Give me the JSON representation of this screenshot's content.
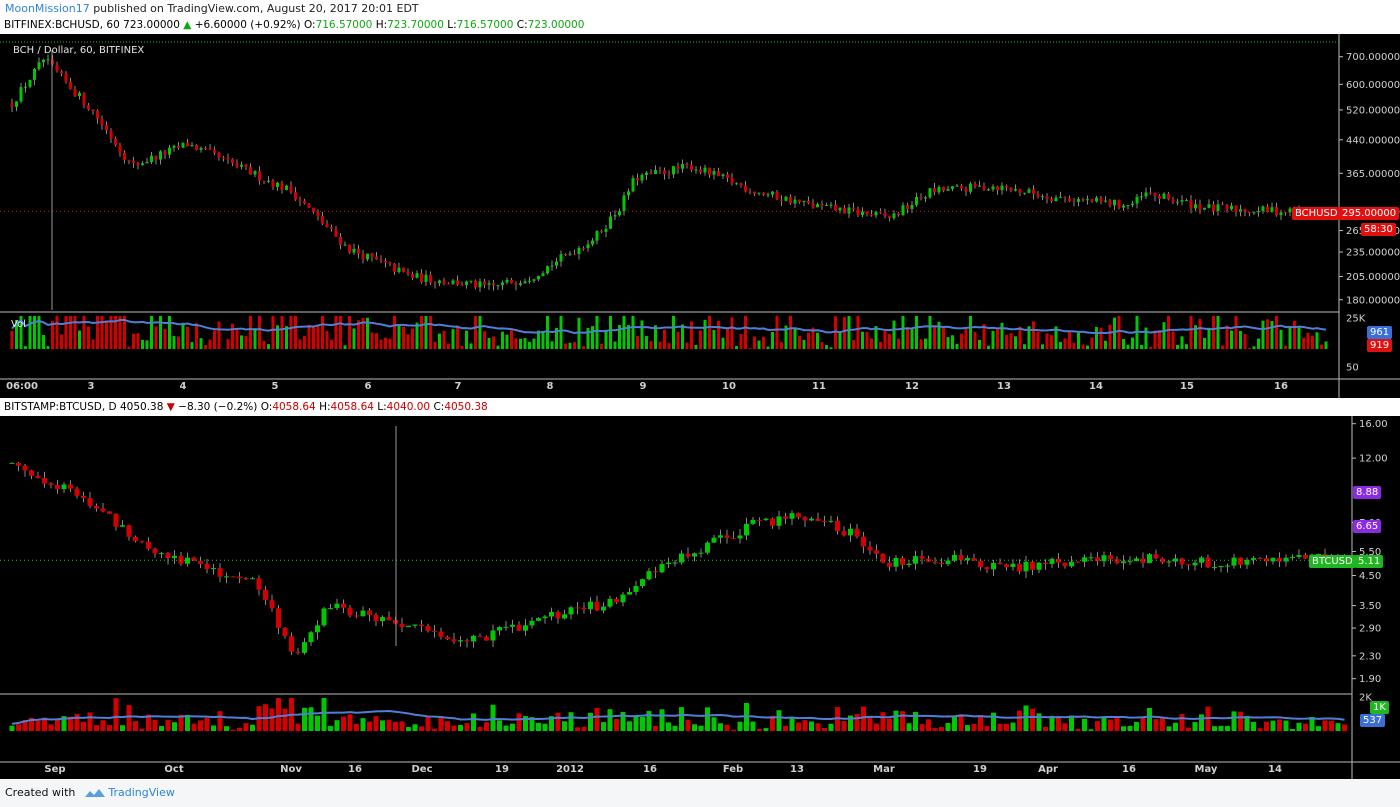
{
  "publish": {
    "user": "MoonMission17",
    "text": "published on TradingView.com, August 20, 2017 20:01 EDT"
  },
  "colors": {
    "up": "#00c800",
    "down": "#d40000",
    "volume_ma": "#4f7fd7",
    "background": "#000000",
    "accent": "#2e84d6",
    "tag_purple": "#8a2be2",
    "tag_blue": "#3a6fd8",
    "tag_red": "#e01010",
    "tag_green": "#22b522"
  },
  "charts": [
    {
      "header": {
        "symbol": "BITFINEX:BCHUSD, 60",
        "last": "723.00000",
        "change_arrow": "▲",
        "change": "+6.60000 (+0.92%)",
        "o_label": "O:",
        "o": "716.57000",
        "h_label": "H:",
        "h": "723.70000",
        "l_label": "L:",
        "l": "716.57000",
        "c_label": "C:",
        "c": "723.00000"
      },
      "watermark": "BCH / Dollar, 60, BITFINEX",
      "y_ticks": [
        "700.00000",
        "600.00000",
        "520.00000",
        "440.00000",
        "365.00000",
        "295.00000",
        "265.00000",
        "235.00000",
        "205.00000",
        "180.00000"
      ],
      "x_ticks": [
        "06:00",
        "3",
        "4",
        "5",
        "6",
        "7",
        "8",
        "9",
        "10",
        "11",
        "12",
        "13",
        "14",
        "15",
        "16"
      ],
      "vol_label": "Vol",
      "vol_ticks": [
        "25K",
        "50"
      ],
      "tags": {
        "symbol_tag": "BCHUSD",
        "price_tag": "295.00000",
        "time_tag": "58:30",
        "vol_ma_tag": "961",
        "vol_tag": "919"
      }
    },
    {
      "header": {
        "symbol": "BITSTAMP:BTCUSD, D",
        "last": "4050.38",
        "change_arrow": "▼",
        "change": "−8.30 (−0.2%)",
        "o_label": "O:",
        "o": "4058.64",
        "h_label": "H:",
        "h": "4058.64",
        "l_label": "L:",
        "l": "4040.00",
        "c_label": "C:",
        "c": "4050.38"
      },
      "y_ticks": [
        "16.00",
        "12.00",
        "7.00",
        "5.50",
        "4.50",
        "3.50",
        "2.90",
        "2.30",
        "1.90"
      ],
      "x_ticks": [
        "Sep",
        "Oct",
        "Nov",
        "16",
        "Dec",
        "19",
        "2012",
        "16",
        "Feb",
        "13",
        "Mar",
        "19",
        "Apr",
        "16",
        "May",
        "14"
      ],
      "vol_ticks": [
        "2K"
      ],
      "tags": {
        "purple_1": "8.88",
        "purple_2": "6.65",
        "symbol_tag": "BTCUSD",
        "price_tag": "5.11",
        "vol_tag": "1K",
        "vol_ma_tag": "537"
      }
    }
  ],
  "chart_data": [
    {
      "type": "candlestick",
      "title": "BCH / Dollar, 60, BITFINEX",
      "x_ticks": [
        "06:00",
        "3",
        "4",
        "5",
        "6",
        "7",
        "8",
        "9",
        "10",
        "11",
        "12",
        "13",
        "14",
        "15",
        "16"
      ],
      "y_scale": "log",
      "ylim": [
        170,
        760
      ],
      "trend": [
        [
          0,
          540
        ],
        [
          0.4,
          690
        ],
        [
          1,
          520
        ],
        [
          1.5,
          380
        ],
        [
          2.2,
          430
        ],
        [
          3.5,
          330
        ],
        [
          4.2,
          240
        ],
        [
          5,
          205
        ],
        [
          6,
          193
        ],
        [
          6.5,
          205
        ],
        [
          7.3,
          255
        ],
        [
          7.6,
          300
        ],
        [
          7.8,
          355
        ],
        [
          8.5,
          380
        ],
        [
          9.3,
          330
        ],
        [
          10,
          305
        ],
        [
          11,
          285
        ],
        [
          11.5,
          330
        ],
        [
          12.3,
          340
        ],
        [
          13,
          320
        ],
        [
          14,
          305
        ],
        [
          14.2,
          325
        ],
        [
          15,
          300
        ],
        [
          16,
          295
        ],
        [
          16.5,
          290
        ]
      ],
      "volume": {
        "ticks": [
          "25K",
          "50"
        ],
        "ma_last": 961,
        "last": 919
      }
    },
    {
      "type": "candlestick",
      "title": "",
      "x_ticks": [
        "Sep",
        "Oct",
        "Nov",
        "16",
        "Dec",
        "19",
        "2012",
        "16",
        "Feb",
        "13",
        "Mar",
        "19",
        "Apr",
        "16",
        "May",
        "14"
      ],
      "y_scale": "log",
      "ylim": [
        1.7,
        16.5
      ],
      "trend": [
        [
          0,
          11.5
        ],
        [
          1,
          8.6
        ],
        [
          2,
          5.6
        ],
        [
          3.5,
          4.2
        ],
        [
          4,
          2.3
        ],
        [
          4.5,
          3.5
        ],
        [
          5.5,
          3.0
        ],
        [
          6.5,
          2.6
        ],
        [
          7.3,
          3.0
        ],
        [
          8.5,
          3.6
        ],
        [
          9.2,
          4.7
        ],
        [
          10.5,
          6.8
        ],
        [
          11.2,
          7.5
        ],
        [
          12.0,
          6.4
        ],
        [
          12.5,
          5.0
        ],
        [
          13.5,
          5.2
        ],
        [
          14,
          4.8
        ],
        [
          15,
          5.0
        ],
        [
          16,
          5.2
        ],
        [
          17,
          5.0
        ],
        [
          18,
          5.3
        ],
        [
          19,
          5.1
        ]
      ],
      "volume": {
        "ticks": [
          "2K"
        ],
        "last": "1K",
        "ma_last": 537
      }
    }
  ]
}
